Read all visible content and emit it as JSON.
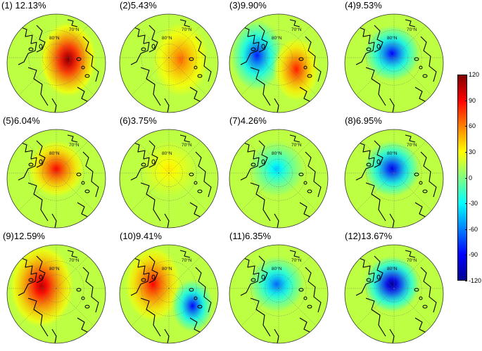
{
  "figure": {
    "latitude_label": "80°N",
    "latitude_label_secondary": "70°N",
    "panels": [
      {
        "label": "(1) 12.13%",
        "pattern": "east_positive",
        "intensity": 1.0
      },
      {
        "label": "(2)5.43%",
        "pattern": "east_positive",
        "intensity": 0.55
      },
      {
        "label": "(3)9.90%",
        "pattern": "west_neg_east_pos",
        "intensity": 0.7
      },
      {
        "label": "(4)9.53%",
        "pattern": "center_negative",
        "intensity": 0.75
      },
      {
        "label": "(5)6.04%",
        "pattern": "center_positive",
        "intensity": 0.75
      },
      {
        "label": "(6)3.75%",
        "pattern": "center_positive",
        "intensity": 0.3
      },
      {
        "label": "(7)4.26%",
        "pattern": "center_negative",
        "intensity": 0.35
      },
      {
        "label": "(8)6.95%",
        "pattern": "center_negative",
        "intensity": 0.8
      },
      {
        "label": "(9)12.59%",
        "pattern": "west_positive",
        "intensity": 0.9
      },
      {
        "label": "(10)9.41%",
        "pattern": "west_pos_east_neg",
        "intensity": 0.75
      },
      {
        "label": "(11)6.35%",
        "pattern": "center_negative",
        "intensity": 0.55
      },
      {
        "label": "(12)13.67%",
        "pattern": "center_negative",
        "intensity": 1.0
      }
    ]
  },
  "colorbar": {
    "min": -120,
    "max": 120,
    "colormap": [
      "#00008f",
      "#0000ff",
      "#0080ff",
      "#00ffff",
      "#80ff80",
      "#ffff00",
      "#ff8000",
      "#ff0000",
      "#800000"
    ],
    "ticks": [
      "120",
      "90",
      "60",
      "30",
      "0",
      "-30",
      "-60",
      "-90",
      "-120"
    ]
  }
}
